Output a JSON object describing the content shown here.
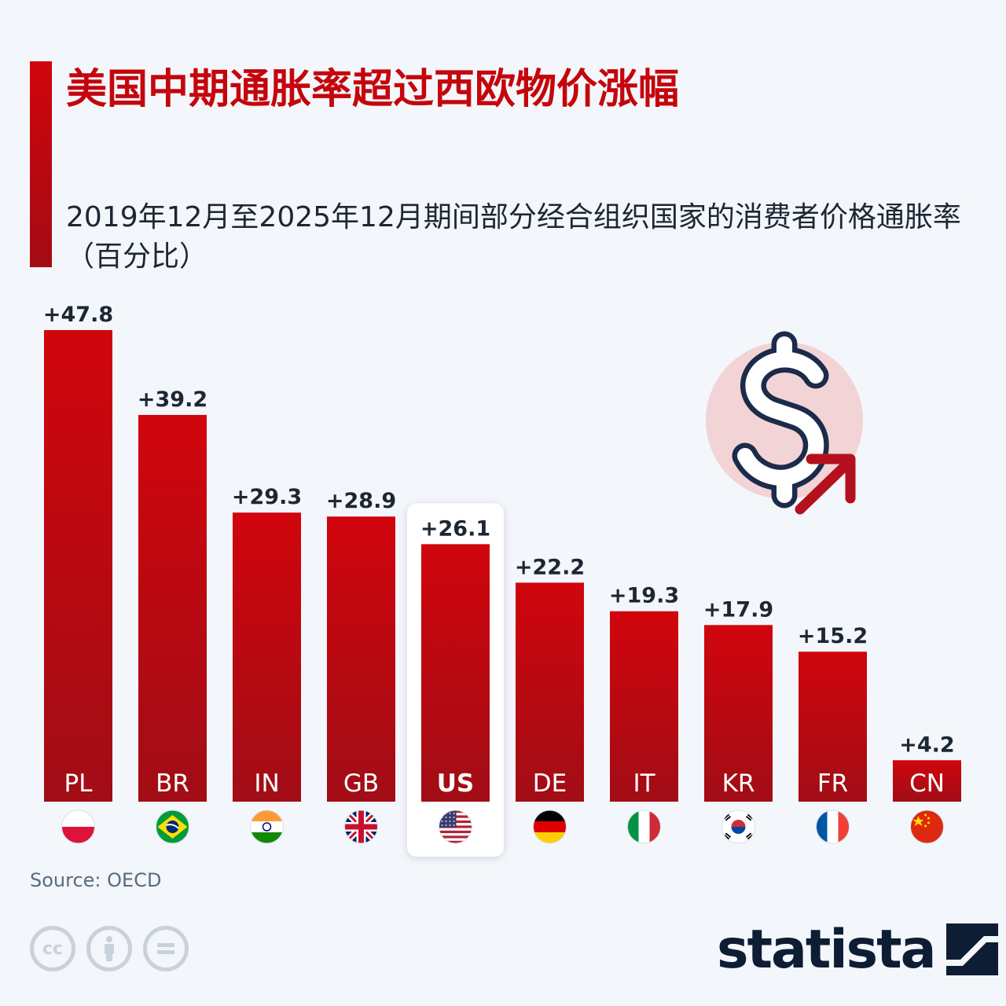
{
  "header": {
    "title": "美国中期通胀率超过西欧物价涨幅",
    "subtitle": "2019年12月至2025年12月期间部分经合组织国家的消费者价格通胀率（百分比）"
  },
  "footer": {
    "source": "Source: OECD",
    "logo_text": "statista",
    "license_icons": [
      "creative-commons-icon",
      "attribution-icon",
      "no-derivatives-icon"
    ]
  },
  "colors": {
    "bar_top": "#d1050d",
    "bar_bottom": "#a10d16",
    "title": "#c5050c",
    "label_dark": "#1d2733",
    "highlight_bg": "#ffffff",
    "icon_circle": "#f2d3d6"
  },
  "chart_data": {
    "type": "bar",
    "title": "美国中期通胀率超过西欧物价涨幅",
    "categories": [
      "PL",
      "BR",
      "IN",
      "GB",
      "US",
      "DE",
      "IT",
      "KR",
      "FR",
      "CN"
    ],
    "values": [
      47.8,
      39.2,
      29.3,
      28.9,
      26.1,
      22.2,
      19.3,
      17.9,
      15.2,
      4.2
    ],
    "value_labels": [
      "+47.8",
      "+39.2",
      "+29.3",
      "+28.9",
      "+26.1",
      "+22.2",
      "+19.3",
      "+17.9",
      "+15.2",
      "+4.2"
    ],
    "highlight": "US",
    "flags": [
      "poland",
      "brazil",
      "india",
      "united-kingdom",
      "united-states",
      "germany",
      "italy",
      "south-korea",
      "france",
      "china"
    ],
    "ylim": [
      0,
      47.8
    ],
    "grid": false,
    "legend": "none",
    "decoration": "dollar-sign-with-up-arrow-icon"
  }
}
